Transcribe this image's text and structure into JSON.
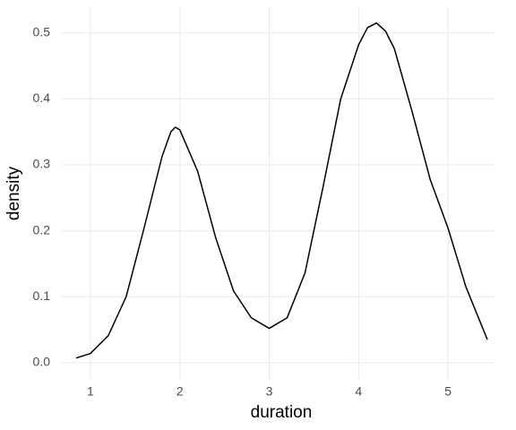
{
  "chart_data": {
    "type": "line",
    "x_label": "duration",
    "y_label": "density",
    "x": [
      0.84,
      1.0,
      1.2,
      1.4,
      1.6,
      1.8,
      1.9,
      1.95,
      2.0,
      2.2,
      2.4,
      2.6,
      2.8,
      3.0,
      3.2,
      3.4,
      3.6,
      3.8,
      4.0,
      4.1,
      4.2,
      4.3,
      4.4,
      4.6,
      4.8,
      5.0,
      5.2,
      5.44
    ],
    "series": [
      {
        "color": "#000000",
        "values": [
          0.007,
          0.014,
          0.041,
          0.1,
          0.204,
          0.312,
          0.35,
          0.357,
          0.353,
          0.29,
          0.19,
          0.109,
          0.068,
          0.052,
          0.068,
          0.136,
          0.265,
          0.4,
          0.482,
          0.508,
          0.515,
          0.503,
          0.476,
          0.38,
          0.278,
          0.204,
          0.115,
          0.035
        ]
      }
    ],
    "xlim": [
      0.67,
      5.52
    ],
    "ylim": [
      -0.026,
      0.539
    ],
    "xticks": [
      1,
      2,
      3,
      4,
      5
    ],
    "yticks": [
      {
        "value": 0,
        "label": "0.0"
      },
      0.1,
      0.2,
      0.3,
      0.4,
      0.5
    ],
    "grid": true
  }
}
